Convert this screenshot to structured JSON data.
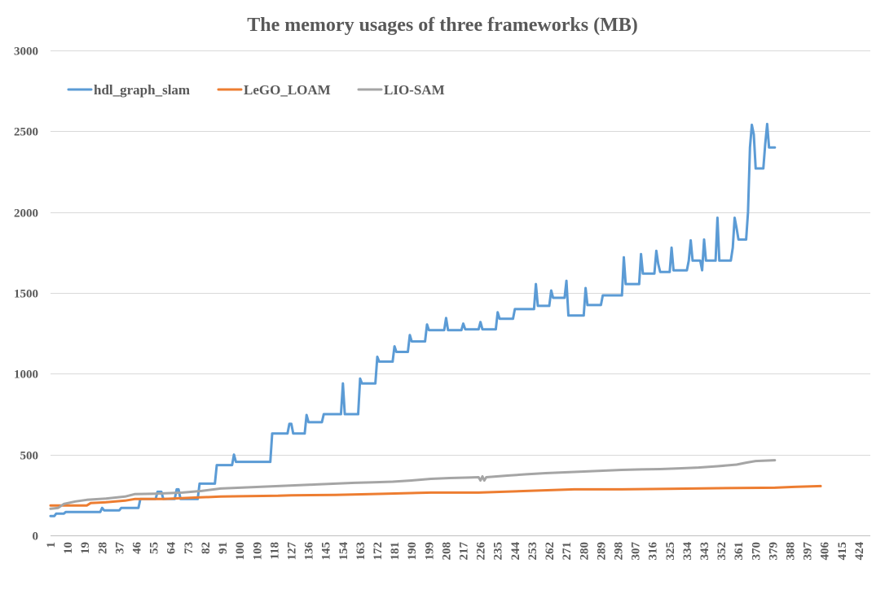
{
  "chart_data": {
    "type": "line",
    "title": "The memory usages of three frameworks (MB)",
    "xlabel": "",
    "ylabel": "",
    "ylim": [
      0,
      3000
    ],
    "yticks": [
      0,
      500,
      1000,
      1500,
      2000,
      2500,
      3000
    ],
    "xlim": [
      1,
      430
    ],
    "xticks": [
      1,
      10,
      19,
      28,
      37,
      46,
      55,
      64,
      73,
      82,
      91,
      100,
      109,
      118,
      127,
      136,
      145,
      154,
      163,
      172,
      181,
      190,
      199,
      208,
      217,
      226,
      235,
      244,
      253,
      262,
      271,
      280,
      289,
      298,
      307,
      316,
      325,
      334,
      343,
      352,
      361,
      370,
      379,
      388,
      397,
      406,
      415,
      424
    ],
    "grid": "horizontal",
    "legend_position": "top-left",
    "series": [
      {
        "name": "hdl_graph_slam",
        "color": "#5B9BD5",
        "points": [
          [
            1,
            120
          ],
          [
            3,
            120
          ],
          [
            4,
            135
          ],
          [
            8,
            135
          ],
          [
            9,
            145
          ],
          [
            27,
            145
          ],
          [
            28,
            170
          ],
          [
            29,
            155
          ],
          [
            37,
            155
          ],
          [
            38,
            170
          ],
          [
            47,
            170
          ],
          [
            48,
            225
          ],
          [
            56,
            225
          ],
          [
            57,
            270
          ],
          [
            59,
            270
          ],
          [
            60,
            225
          ],
          [
            66,
            225
          ],
          [
            67,
            285
          ],
          [
            68,
            285
          ],
          [
            69,
            225
          ],
          [
            78,
            225
          ],
          [
            79,
            320
          ],
          [
            87,
            320
          ],
          [
            88,
            435
          ],
          [
            96,
            435
          ],
          [
            97,
            500
          ],
          [
            98,
            455
          ],
          [
            116,
            455
          ],
          [
            117,
            630
          ],
          [
            125,
            630
          ],
          [
            126,
            690
          ],
          [
            127,
            690
          ],
          [
            128,
            630
          ],
          [
            134,
            630
          ],
          [
            135,
            745
          ],
          [
            136,
            700
          ],
          [
            143,
            700
          ],
          [
            144,
            750
          ],
          [
            153,
            750
          ],
          [
            154,
            940
          ],
          [
            155,
            750
          ],
          [
            162,
            750
          ],
          [
            163,
            970
          ],
          [
            164,
            940
          ],
          [
            171,
            940
          ],
          [
            172,
            1105
          ],
          [
            173,
            1075
          ],
          [
            180,
            1075
          ],
          [
            181,
            1170
          ],
          [
            182,
            1135
          ],
          [
            188,
            1135
          ],
          [
            189,
            1240
          ],
          [
            190,
            1200
          ],
          [
            197,
            1200
          ],
          [
            198,
            1305
          ],
          [
            199,
            1270
          ],
          [
            207,
            1270
          ],
          [
            208,
            1345
          ],
          [
            209,
            1270
          ],
          [
            216,
            1270
          ],
          [
            217,
            1310
          ],
          [
            218,
            1275
          ],
          [
            225,
            1275
          ],
          [
            226,
            1320
          ],
          [
            227,
            1275
          ],
          [
            234,
            1275
          ],
          [
            235,
            1380
          ],
          [
            236,
            1340
          ],
          [
            243,
            1340
          ],
          [
            244,
            1400
          ],
          [
            254,
            1400
          ],
          [
            255,
            1555
          ],
          [
            256,
            1420
          ],
          [
            262,
            1420
          ],
          [
            263,
            1515
          ],
          [
            264,
            1470
          ],
          [
            270,
            1470
          ],
          [
            271,
            1575
          ],
          [
            272,
            1360
          ],
          [
            280,
            1360
          ],
          [
            281,
            1530
          ],
          [
            282,
            1425
          ],
          [
            289,
            1425
          ],
          [
            290,
            1485
          ],
          [
            300,
            1485
          ],
          [
            301,
            1720
          ],
          [
            302,
            1555
          ],
          [
            309,
            1555
          ],
          [
            310,
            1740
          ],
          [
            311,
            1620
          ],
          [
            317,
            1620
          ],
          [
            318,
            1760
          ],
          [
            319,
            1680
          ],
          [
            320,
            1630
          ],
          [
            325,
            1630
          ],
          [
            326,
            1780
          ],
          [
            327,
            1640
          ],
          [
            334,
            1640
          ],
          [
            335,
            1700
          ],
          [
            336,
            1825
          ],
          [
            337,
            1700
          ],
          [
            341,
            1700
          ],
          [
            342,
            1640
          ],
          [
            343,
            1830
          ],
          [
            344,
            1700
          ],
          [
            349,
            1700
          ],
          [
            350,
            1965
          ],
          [
            351,
            1700
          ],
          [
            357,
            1700
          ],
          [
            358,
            1780
          ],
          [
            359,
            1965
          ],
          [
            360,
            1900
          ],
          [
            361,
            1830
          ],
          [
            365,
            1830
          ],
          [
            366,
            2000
          ],
          [
            367,
            2400
          ],
          [
            368,
            2540
          ],
          [
            369,
            2480
          ],
          [
            370,
            2270
          ],
          [
            374,
            2270
          ],
          [
            375,
            2420
          ],
          [
            376,
            2545
          ],
          [
            377,
            2400
          ],
          [
            380,
            2400
          ]
        ]
      },
      {
        "name": "LeGO_LOAM",
        "color": "#ED7D31",
        "points": [
          [
            1,
            185
          ],
          [
            20,
            185
          ],
          [
            22,
            200
          ],
          [
            30,
            205
          ],
          [
            40,
            215
          ],
          [
            45,
            225
          ],
          [
            60,
            225
          ],
          [
            79,
            235
          ],
          [
            90,
            240
          ],
          [
            100,
            242
          ],
          [
            120,
            245
          ],
          [
            127,
            248
          ],
          [
            150,
            250
          ],
          [
            175,
            257
          ],
          [
            200,
            265
          ],
          [
            225,
            265
          ],
          [
            250,
            275
          ],
          [
            275,
            285
          ],
          [
            300,
            285
          ],
          [
            325,
            288
          ],
          [
            350,
            292
          ],
          [
            380,
            295
          ],
          [
            390,
            300
          ],
          [
            404,
            305
          ]
        ]
      },
      {
        "name": "LIO-SAM",
        "color": "#A5A5A5",
        "points": [
          [
            1,
            165
          ],
          [
            5,
            170
          ],
          [
            8,
            195
          ],
          [
            14,
            210
          ],
          [
            20,
            220
          ],
          [
            30,
            228
          ],
          [
            40,
            240
          ],
          [
            45,
            255
          ],
          [
            56,
            258
          ],
          [
            70,
            265
          ],
          [
            80,
            275
          ],
          [
            90,
            290
          ],
          [
            100,
            295
          ],
          [
            110,
            300
          ],
          [
            120,
            305
          ],
          [
            130,
            310
          ],
          [
            140,
            315
          ],
          [
            150,
            320
          ],
          [
            160,
            325
          ],
          [
            170,
            328
          ],
          [
            180,
            332
          ],
          [
            190,
            340
          ],
          [
            200,
            350
          ],
          [
            210,
            355
          ],
          [
            220,
            358
          ],
          [
            225,
            360
          ],
          [
            226,
            340
          ],
          [
            227,
            365
          ],
          [
            228,
            340
          ],
          [
            229,
            360
          ],
          [
            240,
            370
          ],
          [
            250,
            378
          ],
          [
            260,
            385
          ],
          [
            270,
            390
          ],
          [
            280,
            395
          ],
          [
            290,
            400
          ],
          [
            300,
            405
          ],
          [
            310,
            408
          ],
          [
            320,
            410
          ],
          [
            330,
            415
          ],
          [
            340,
            420
          ],
          [
            350,
            428
          ],
          [
            360,
            438
          ],
          [
            365,
            450
          ],
          [
            370,
            460
          ],
          [
            380,
            465
          ]
        ]
      }
    ]
  }
}
